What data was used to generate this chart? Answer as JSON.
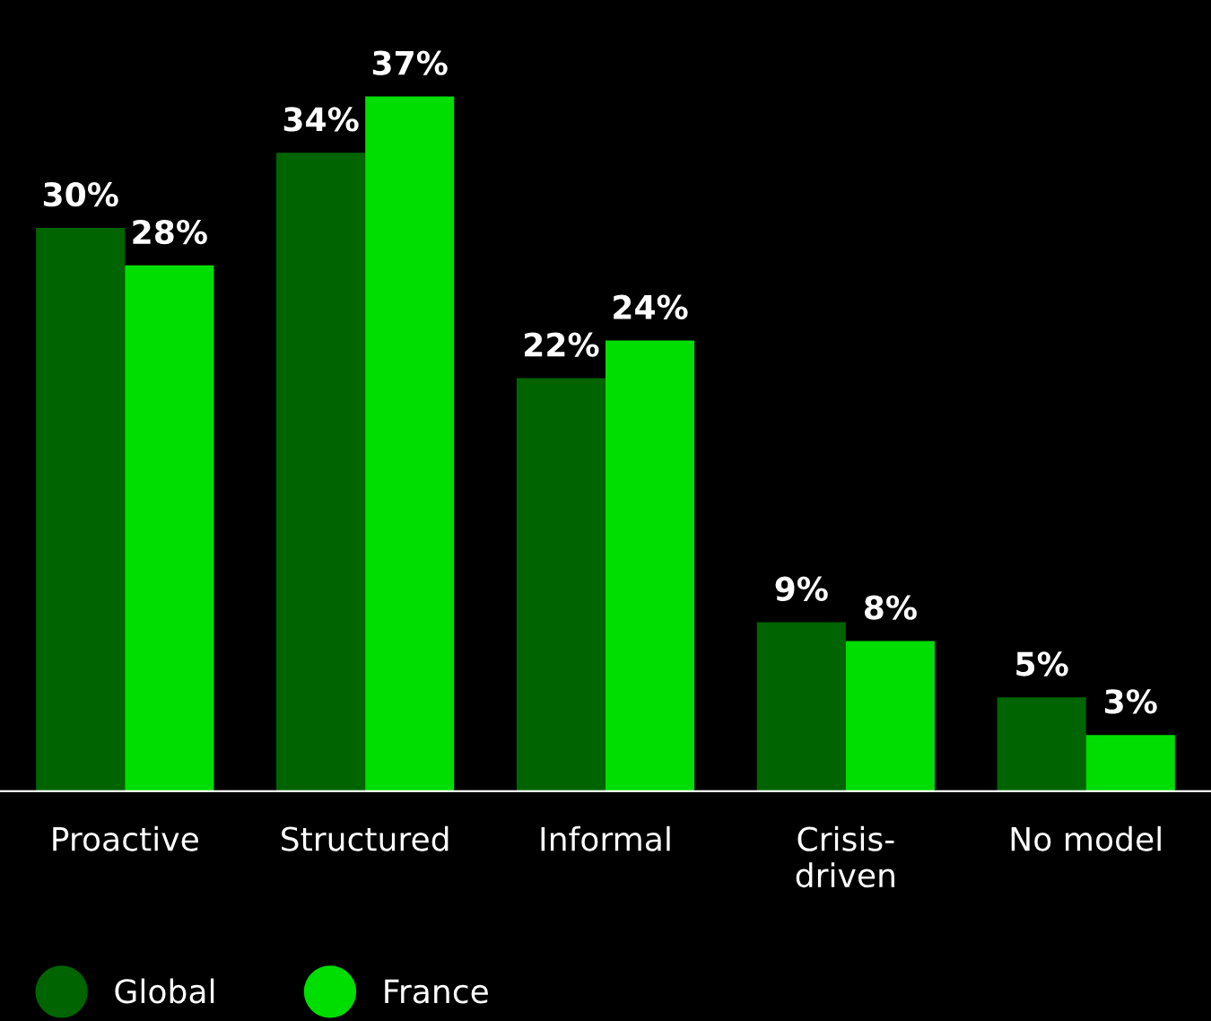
{
  "chart_data": {
    "type": "bar",
    "categories": [
      "Proactive",
      "Structured",
      "Informal",
      "Crisis-\ndriven",
      "No model"
    ],
    "series": [
      {
        "name": "Global",
        "color": "#006400",
        "values": [
          30,
          34,
          22,
          9,
          5
        ],
        "value_labels": [
          "30%",
          "34%",
          "22%",
          "9%",
          "5%"
        ]
      },
      {
        "name": "France",
        "color": "#00dd00",
        "values": [
          28,
          37,
          24,
          8,
          3
        ],
        "value_labels": [
          "28%",
          "37%",
          "24%",
          "8%",
          "3%"
        ]
      }
    ],
    "legend": "bottom left",
    "grid": false
  }
}
